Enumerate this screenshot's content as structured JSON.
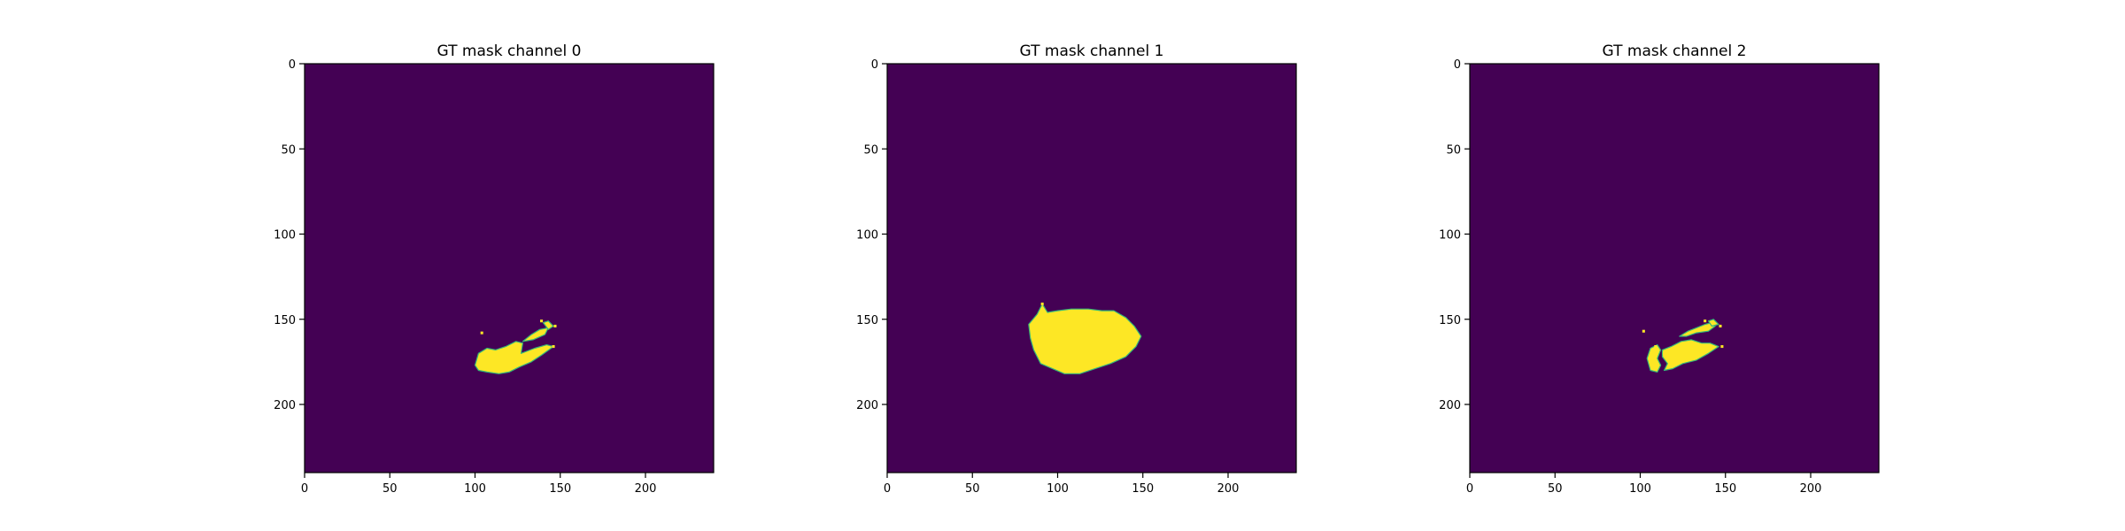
{
  "chart_data": [
    {
      "type": "heatmap",
      "title": "GT mask channel 0",
      "xlim": [
        0,
        240
      ],
      "ylim": [
        240,
        0
      ],
      "xticks": [
        0,
        50,
        100,
        150,
        200
      ],
      "yticks": [
        0,
        50,
        100,
        150,
        200
      ],
      "colormap": "viridis",
      "background_color": "#440154",
      "foreground_color": "#fde725",
      "edge_color": "#35b779",
      "regions": [
        {
          "polygon": [
            [
              100,
              177
            ],
            [
              102,
              170
            ],
            [
              107,
              167
            ],
            [
              112,
              168
            ],
            [
              118,
              166
            ],
            [
              124,
              163
            ],
            [
              128,
              164
            ],
            [
              127,
              170
            ],
            [
              135,
              167
            ],
            [
              142,
              165
            ],
            [
              146,
              166
            ],
            [
              139,
              171
            ],
            [
              133,
              175
            ],
            [
              126,
              178
            ],
            [
              120,
              181
            ],
            [
              114,
              182
            ],
            [
              107,
              181
            ],
            [
              102,
              180
            ]
          ]
        },
        {
          "polygon": [
            [
              128,
              163
            ],
            [
              133,
              159
            ],
            [
              138,
              156
            ],
            [
              143,
              155
            ],
            [
              141,
              159
            ],
            [
              134,
              162
            ]
          ]
        },
        {
          "polygon": [
            [
              140,
              152
            ],
            [
              143,
              151
            ],
            [
              146,
              154
            ],
            [
              143,
              156
            ]
          ]
        }
      ],
      "specks": [
        [
          104,
          158
        ],
        [
          139,
          151
        ],
        [
          147,
          154
        ],
        [
          146,
          166
        ]
      ]
    },
    {
      "type": "heatmap",
      "title": "GT mask channel 1",
      "xlim": [
        0,
        240
      ],
      "ylim": [
        240,
        0
      ],
      "xticks": [
        0,
        50,
        100,
        150,
        200
      ],
      "yticks": [
        0,
        50,
        100,
        150,
        200
      ],
      "colormap": "viridis",
      "background_color": "#440154",
      "foreground_color": "#fde725",
      "edge_color": "#35b779",
      "regions": [
        {
          "polygon": [
            [
              83,
              153
            ],
            [
              88,
              147
            ],
            [
              91,
              141
            ],
            [
              94,
              146
            ],
            [
              100,
              145
            ],
            [
              108,
              144
            ],
            [
              118,
              144
            ],
            [
              126,
              145
            ],
            [
              133,
              145
            ],
            [
              140,
              149
            ],
            [
              145,
              154
            ],
            [
              149,
              160
            ],
            [
              146,
              166
            ],
            [
              140,
              172
            ],
            [
              131,
              176
            ],
            [
              122,
              179
            ],
            [
              113,
              182
            ],
            [
              104,
              182
            ],
            [
              97,
              179
            ],
            [
              90,
              176
            ],
            [
              86,
              168
            ],
            [
              84,
              161
            ]
          ]
        }
      ],
      "specks": [
        [
          91,
          141
        ]
      ]
    },
    {
      "type": "heatmap",
      "title": "GT mask channel 2",
      "xlim": [
        0,
        240
      ],
      "ylim": [
        240,
        0
      ],
      "xticks": [
        0,
        50,
        100,
        150,
        200
      ],
      "yticks": [
        0,
        50,
        100,
        150,
        200
      ],
      "colormap": "viridis",
      "background_color": "#440154",
      "foreground_color": "#fde725",
      "edge_color": "#35b779",
      "regions": [
        {
          "polygon": [
            [
              104,
              173
            ],
            [
              106,
              167
            ],
            [
              110,
              165
            ],
            [
              112,
              168
            ],
            [
              110,
              173
            ],
            [
              112,
              177
            ],
            [
              110,
              181
            ],
            [
              106,
              180
            ]
          ]
        },
        {
          "polygon": [
            [
              113,
              168
            ],
            [
              118,
              166
            ],
            [
              124,
              163
            ],
            [
              130,
              162
            ],
            [
              136,
              164
            ],
            [
              141,
              164
            ],
            [
              146,
              166
            ],
            [
              140,
              170
            ],
            [
              133,
              174
            ],
            [
              125,
              176
            ],
            [
              119,
              179
            ],
            [
              114,
              180
            ],
            [
              116,
              176
            ],
            [
              113,
              172
            ]
          ]
        },
        {
          "polygon": [
            [
              123,
              160
            ],
            [
              128,
              157
            ],
            [
              133,
              155
            ],
            [
              138,
              153
            ],
            [
              142,
              152
            ],
            [
              144,
              154
            ],
            [
              140,
              157
            ],
            [
              133,
              158
            ],
            [
              127,
              160
            ]
          ]
        },
        {
          "polygon": [
            [
              140,
              151
            ],
            [
              143,
              150
            ],
            [
              146,
              153
            ],
            [
              142,
              154
            ]
          ]
        }
      ],
      "specks": [
        [
          102,
          157
        ],
        [
          138,
          151
        ],
        [
          147,
          154
        ],
        [
          148,
          166
        ],
        [
          109,
          166
        ],
        [
          114,
          170
        ]
      ]
    }
  ]
}
